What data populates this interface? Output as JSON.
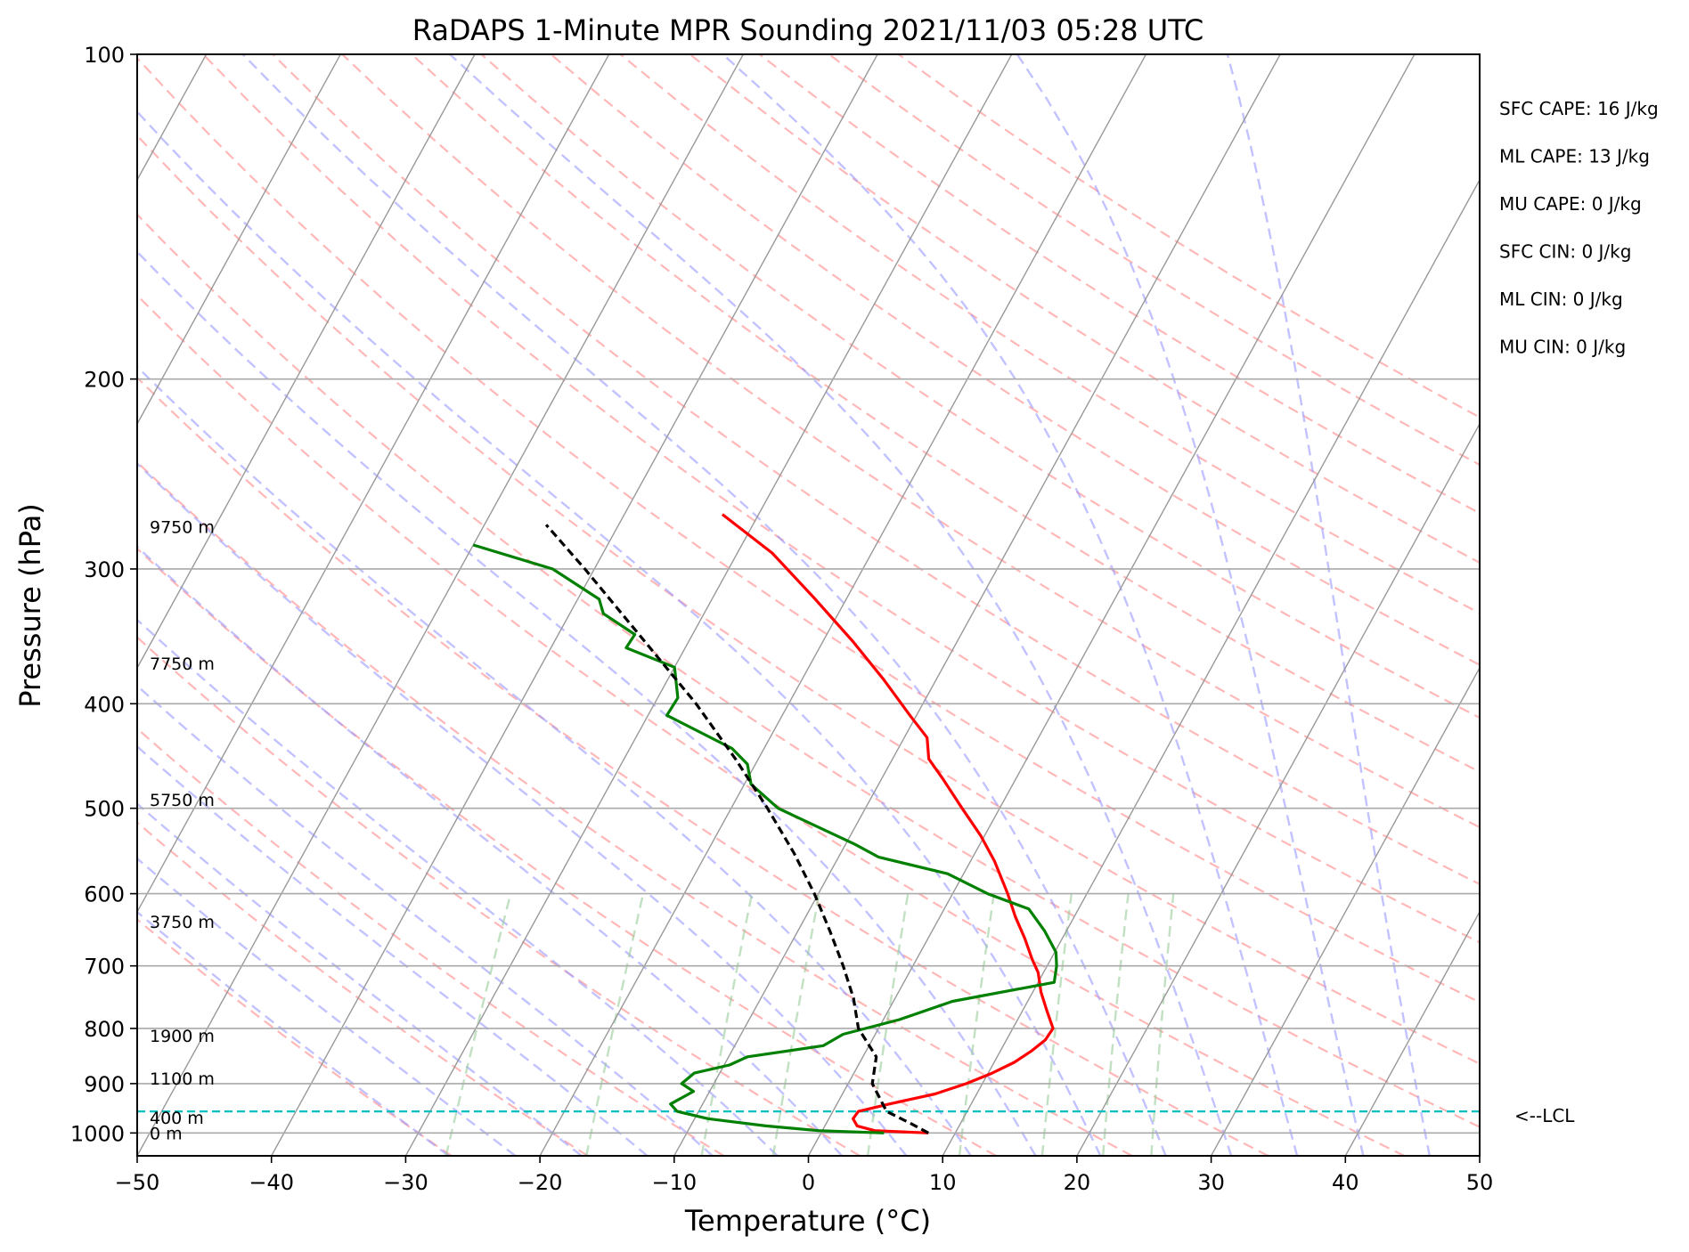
{
  "chart_data": {
    "type": "line",
    "subtype": "skew-T log-P sounding",
    "title": "RaDAPS 1-Minute MPR Sounding 2021/11/03 05:28 UTC",
    "xlabel": "Temperature (°C)",
    "ylabel": "Pressure (hPa)",
    "xlim": [
      -50,
      50
    ],
    "ylim": [
      1050,
      100
    ],
    "y_scale": "log",
    "x_ticks": [
      -50,
      -40,
      -30,
      -20,
      -10,
      0,
      10,
      20,
      30,
      40,
      50
    ],
    "x_tick_labels": [
      "−50",
      "−40",
      "−30",
      "−20",
      "−10",
      "0",
      "10",
      "20",
      "30",
      "40",
      "50"
    ],
    "y_ticks": [
      100,
      200,
      300,
      400,
      500,
      600,
      700,
      800,
      900,
      1000
    ],
    "y_tick_labels": [
      "100",
      "200",
      "300",
      "400",
      "500",
      "600",
      "700",
      "800",
      "900",
      "1000"
    ],
    "grid": true,
    "series": [
      {
        "role": "temperature",
        "color": "#ff0000",
        "points": [
          [
            1000,
            8
          ],
          [
            995,
            3.9
          ],
          [
            985,
            2.4
          ],
          [
            970,
            1.8
          ],
          [
            955,
            1.9
          ],
          [
            940,
            3.9
          ],
          [
            920,
            6.9
          ],
          [
            900,
            8.8
          ],
          [
            880,
            10.3
          ],
          [
            860,
            11.5
          ],
          [
            840,
            12.3
          ],
          [
            820,
            12.9
          ],
          [
            800,
            13.0
          ],
          [
            770,
            11.8
          ],
          [
            740,
            10.6
          ],
          [
            710,
            9.6
          ],
          [
            690,
            8.6
          ],
          [
            660,
            7.2
          ],
          [
            630,
            5.6
          ],
          [
            600,
            4.1
          ],
          [
            560,
            1.8
          ],
          [
            530,
            -0.3
          ],
          [
            500,
            -2.8
          ],
          [
            470,
            -5.4
          ],
          [
            450,
            -7.3
          ],
          [
            430,
            -8.3
          ],
          [
            410,
            -10.5
          ],
          [
            380,
            -13.9
          ],
          [
            350,
            -17.8
          ],
          [
            320,
            -22.3
          ],
          [
            290,
            -27.4
          ],
          [
            267,
            -32.7
          ]
        ]
      },
      {
        "role": "dewpoint",
        "color": "#008000",
        "points": [
          [
            1000,
            4.7
          ],
          [
            995,
            -0.3
          ],
          [
            985,
            -4.4
          ],
          [
            970,
            -9.0
          ],
          [
            955,
            -11.6
          ],
          [
            940,
            -12.4
          ],
          [
            915,
            -11.2
          ],
          [
            900,
            -12.4
          ],
          [
            880,
            -11.9
          ],
          [
            865,
            -9.6
          ],
          [
            850,
            -8.6
          ],
          [
            830,
            -3.4
          ],
          [
            810,
            -2.4
          ],
          [
            785,
            1.2
          ],
          [
            755,
            4.4
          ],
          [
            725,
            11.2
          ],
          [
            700,
            10.7
          ],
          [
            680,
            10.1
          ],
          [
            650,
            8.4
          ],
          [
            620,
            6.3
          ],
          [
            600,
            2.6
          ],
          [
            575,
            -1.2
          ],
          [
            555,
            -7.0
          ],
          [
            540,
            -9.3
          ],
          [
            500,
            -16.5
          ],
          [
            475,
            -19.5
          ],
          [
            455,
            -20.6
          ],
          [
            440,
            -22.4
          ],
          [
            410,
            -28.6
          ],
          [
            395,
            -28.5
          ],
          [
            370,
            -30.0
          ],
          [
            355,
            -34.4
          ],
          [
            345,
            -34.3
          ],
          [
            330,
            -37.5
          ],
          [
            320,
            -38.4
          ],
          [
            300,
            -43.1
          ],
          [
            285,
            -50
          ]
        ]
      },
      {
        "role": "parcel profile",
        "color": "#000000",
        "dashed": true,
        "points": [
          [
            1000,
            8.0
          ],
          [
            980,
            6.3
          ],
          [
            955,
            4.0
          ],
          [
            900,
            1.8
          ],
          [
            850,
            1.0
          ],
          [
            800,
            -1.5
          ],
          [
            750,
            -3.1
          ],
          [
            700,
            -5.2
          ],
          [
            650,
            -7.6
          ],
          [
            600,
            -10.3
          ],
          [
            550,
            -13.5
          ],
          [
            500,
            -17.3
          ],
          [
            450,
            -21.7
          ],
          [
            400,
            -26.9
          ],
          [
            350,
            -33.3
          ],
          [
            300,
            -40.7
          ],
          [
            273,
            -45.4
          ]
        ]
      }
    ],
    "lcl": {
      "pressure": 955,
      "label": "<--LCL"
    },
    "height_labels": [
      {
        "text": "9750 m",
        "pressure": 274
      },
      {
        "text": "7750 m",
        "pressure": 367
      },
      {
        "text": "5750 m",
        "pressure": 491
      },
      {
        "text": "3750 m",
        "pressure": 637
      },
      {
        "text": "1900 m",
        "pressure": 812
      },
      {
        "text": "1100 m",
        "pressure": 890
      },
      {
        "text": "400 m",
        "pressure": 968
      },
      {
        "text": "0 m",
        "pressure": 1000
      }
    ],
    "annotations": [
      "SFC CAPE: 16 J/kg",
      "ML CAPE: 13 J/kg",
      "MU CAPE: 0 J/kg",
      "SFC CIN: 0 J/kg",
      "ML CIN: 0 J/kg",
      "MU CIN: 0 J/kg"
    ],
    "reference_lines": {
      "dry_adiabats_color": "#ff9999",
      "moist_adiabats_color": "#9999ff",
      "mixing_ratio_color": "#99cc99",
      "isotherm_color": "#999999"
    }
  }
}
